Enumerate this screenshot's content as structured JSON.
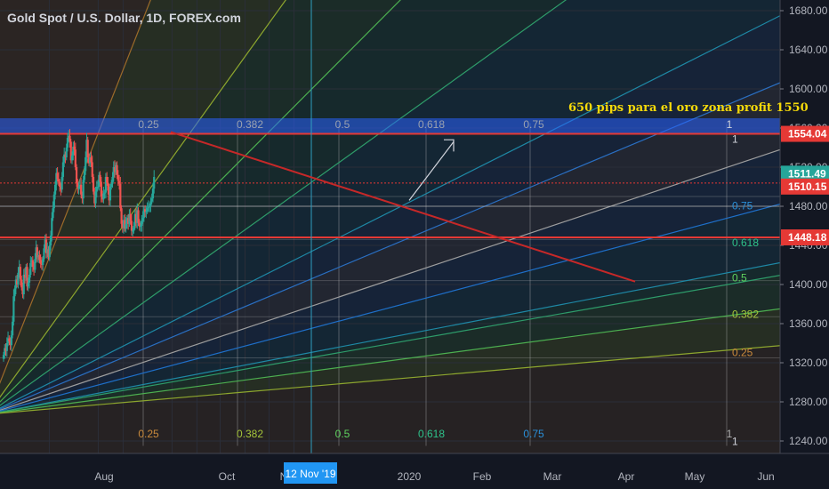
{
  "header": {
    "title": "Gold Spot / U.S. Dollar, 1D, FOREX.com"
  },
  "annotation": "650 pips para el oro zona profit 1550",
  "chart_data": {
    "type": "candlestick",
    "title": "Gold Spot / U.S. Dollar, 1D, FOREX.com",
    "y_axis": {
      "side": "right",
      "ylim": [
        1220,
        1700
      ],
      "ticks": [
        1240,
        1280,
        1320,
        1360,
        1400,
        1440,
        1480,
        1520,
        1560,
        1600,
        1640,
        1680
      ],
      "tick_labels": [
        "1240.00",
        "1280.00",
        "1320.00",
        "1360.00",
        "1400.00",
        "1440.00",
        "1480.00",
        "1520.00",
        "1560.00",
        "1600.00",
        "1640.00",
        "1680.00"
      ]
    },
    "x_axis": {
      "tick_labels": [
        "Aug",
        "Oct",
        "N",
        "2020",
        "Feb",
        "Mar",
        "Apr",
        "May",
        "Jun"
      ],
      "crosshair_label": "12 Nov '19"
    },
    "price_labels": [
      {
        "value": 1554.04,
        "label": "1554.04",
        "color": "#e53935",
        "kind": "horizontal-line"
      },
      {
        "value": 1511.49,
        "label": "1511.49",
        "color": "#26a69a",
        "kind": "last-price"
      },
      {
        "value": 1510.15,
        "label": "1510.15",
        "color": "#e53935",
        "kind": "horizontal-line"
      },
      {
        "value": 1448.18,
        "label": "1448.18",
        "color": "#e53935",
        "kind": "horizontal-line"
      }
    ],
    "gann_fan_levels": [
      "0.25",
      "0.382",
      "0.5",
      "0.618",
      "0.75",
      "1"
    ],
    "gann_fan_price_labels": [
      "0.75",
      "0.618",
      "0.5",
      "0.382",
      "0.25",
      "1"
    ],
    "candles": {
      "start_date": "2019-06-05",
      "close": [
        1328,
        1335,
        1332,
        1340,
        1345,
        1342,
        1338,
        1348,
        1362,
        1388,
        1396,
        1405,
        1400,
        1412,
        1418,
        1405,
        1397,
        1390,
        1410,
        1407,
        1418,
        1398,
        1402,
        1410,
        1422,
        1425,
        1418,
        1415,
        1426,
        1438,
        1428,
        1430,
        1425,
        1421,
        1420,
        1426,
        1437,
        1446,
        1432,
        1436,
        1428,
        1440,
        1450,
        1468,
        1478,
        1492,
        1502,
        1514,
        1508,
        1505,
        1500,
        1497,
        1510,
        1525,
        1533,
        1530,
        1540,
        1550,
        1552,
        1546,
        1527,
        1532,
        1541,
        1538,
        1520,
        1504,
        1498,
        1500,
        1502,
        1492,
        1488,
        1507,
        1516,
        1530,
        1548,
        1530,
        1524,
        1530,
        1525,
        1510,
        1495,
        1483,
        1495,
        1500,
        1500,
        1512,
        1505,
        1490,
        1487,
        1493,
        1494,
        1510,
        1504,
        1496,
        1486,
        1500,
        1503,
        1510,
        1520,
        1515,
        1522,
        1512,
        1506,
        1503,
        1478,
        1462,
        1458,
        1466,
        1457,
        1462,
        1468,
        1462,
        1472,
        1465,
        1455,
        1455,
        1460,
        1472,
        1463,
        1476,
        1463,
        1459,
        1460,
        1465,
        1468,
        1477,
        1474,
        1475,
        1478,
        1479,
        1480,
        1485,
        1488,
        1498,
        1510
      ]
    }
  }
}
